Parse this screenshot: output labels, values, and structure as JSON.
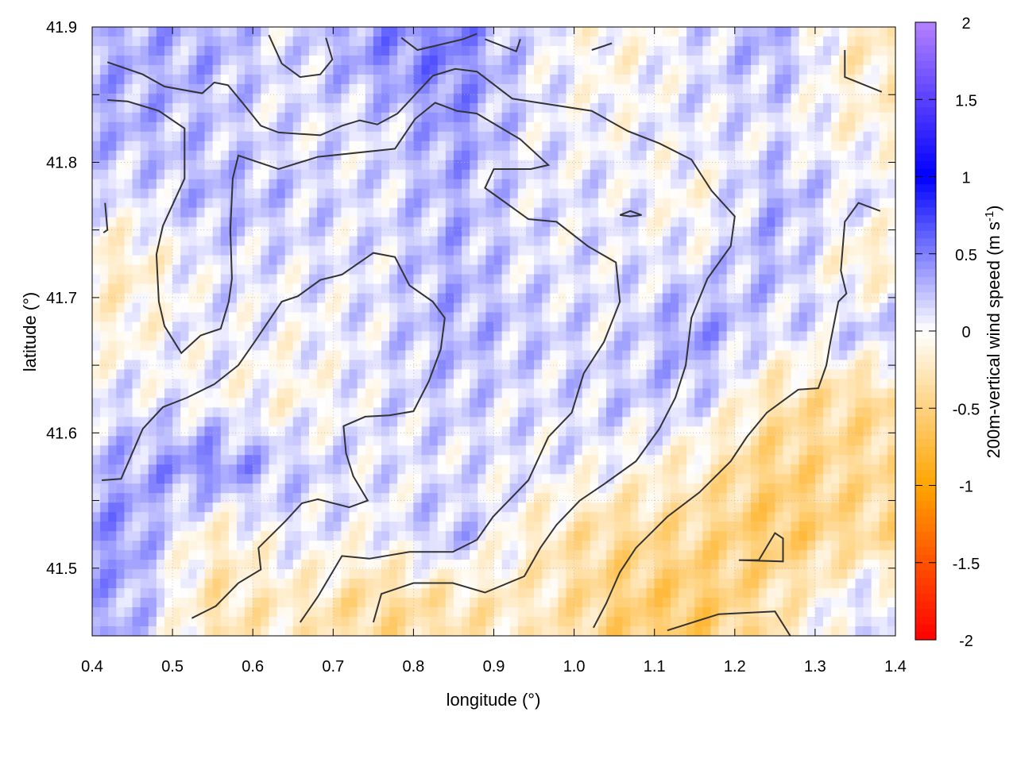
{
  "chart_data": {
    "type": "heatmap",
    "title": "",
    "xlabel": "longitude (°)",
    "ylabel": "latitude (°)",
    "xlim": [
      0.4,
      1.4
    ],
    "ylim": [
      41.45,
      41.9
    ],
    "xticks": [
      "0.4",
      "0.5",
      "0.6",
      "0.7",
      "0.8",
      "0.9",
      "1.0",
      "1.1",
      "1.2",
      "1.3",
      "1.4"
    ],
    "yticks": [
      "41.5",
      "41.6",
      "41.7",
      "41.8",
      "41.9"
    ],
    "grid": true,
    "colorbar": {
      "label": "200m-vertical wind speed (m s",
      "label_sup": "-1",
      "label_end": ")",
      "range": [
        -2,
        2
      ],
      "ticks": [
        "2",
        "1.5",
        "1",
        "0.5",
        "0",
        "-0.5",
        "-1",
        "-1.5",
        "-2"
      ],
      "stops": [
        {
          "value": -2,
          "color": "#ff0000"
        },
        {
          "value": -1,
          "color": "#ffa500"
        },
        {
          "value": 0,
          "color": "#ffffff"
        },
        {
          "value": 1,
          "color": "#0000ff"
        },
        {
          "value": 2,
          "color": "#b482ff"
        }
      ]
    },
    "grid_lon": [
      0.45,
      0.55,
      0.65,
      0.75,
      0.85,
      0.95,
      1.05,
      1.15,
      1.25,
      1.35
    ],
    "grid_lat": [
      41.875,
      41.825,
      41.775,
      41.725,
      41.675,
      41.625,
      41.575,
      41.525,
      41.475
    ],
    "values": [
      [
        0.3,
        0.3,
        0.1,
        0.4,
        0.5,
        0.1,
        -0.1,
        0.1,
        0.3,
        -0.2
      ],
      [
        0.3,
        0.2,
        0.1,
        0.1,
        0.4,
        0.1,
        0.0,
        0.1,
        0.1,
        -0.1
      ],
      [
        0.1,
        0.3,
        0.2,
        0.1,
        0.3,
        0.1,
        0.1,
        -0.1,
        0.3,
        0.1
      ],
      [
        -0.2,
        0.1,
        0.1,
        0.1,
        0.3,
        0.1,
        0.1,
        0.1,
        0.3,
        -0.2
      ],
      [
        -0.1,
        0.1,
        0.0,
        0.1,
        0.3,
        0.2,
        0.1,
        0.4,
        0.1,
        0.2
      ],
      [
        0.1,
        0.0,
        -0.1,
        0.1,
        0.2,
        0.1,
        0.2,
        0.2,
        -0.3,
        -0.4
      ],
      [
        0.3,
        0.5,
        0.2,
        0.1,
        0.1,
        0.1,
        0.0,
        -0.2,
        -0.5,
        -0.4
      ],
      [
        0.4,
        -0.2,
        0.1,
        0.0,
        0.3,
        -0.2,
        -0.4,
        -0.4,
        -0.6,
        -0.4
      ],
      [
        0.3,
        -0.3,
        -0.2,
        -0.4,
        -0.3,
        -0.2,
        -0.5,
        -0.6,
        -0.3,
        0.1
      ]
    ],
    "contour_color": "#333333",
    "contours": [
      [
        [
          0.419,
          41.874
        ],
        [
          0.463,
          41.865
        ],
        [
          0.49,
          41.856
        ],
        [
          0.537,
          41.851
        ],
        [
          0.552,
          41.859
        ],
        [
          0.569,
          41.857
        ],
        [
          0.587,
          41.844
        ],
        [
          0.61,
          41.827
        ],
        [
          0.632,
          41.822
        ],
        [
          0.684,
          41.82
        ],
        [
          0.711,
          41.827
        ],
        [
          0.733,
          41.831
        ],
        [
          0.755,
          41.828
        ],
        [
          0.78,
          41.836
        ],
        [
          0.799,
          41.848
        ],
        [
          0.824,
          41.864
        ],
        [
          0.852,
          41.869
        ],
        [
          0.879,
          41.867
        ],
        [
          0.923,
          41.847
        ],
        [
          0.978,
          41.842
        ],
        [
          1.022,
          41.838
        ],
        [
          1.067,
          41.823
        ],
        [
          1.106,
          41.814
        ],
        [
          1.146,
          41.802
        ],
        [
          1.171,
          41.779
        ],
        [
          1.2,
          41.76
        ],
        [
          1.195,
          41.738
        ],
        [
          1.166,
          41.714
        ],
        [
          1.146,
          41.685
        ],
        [
          1.139,
          41.65
        ],
        [
          1.126,
          41.626
        ],
        [
          1.106,
          41.603
        ],
        [
          1.077,
          41.579
        ],
        [
          1.037,
          41.562
        ],
        [
          1.007,
          41.55
        ],
        [
          0.978,
          41.532
        ],
        [
          0.958,
          41.515
        ],
        [
          0.938,
          41.494
        ],
        [
          0.889,
          41.482
        ],
        [
          0.849,
          41.489
        ],
        [
          0.8,
          41.489
        ],
        [
          0.76,
          41.481
        ],
        [
          0.75,
          41.46
        ]
      ],
      [
        [
          0.419,
          41.846
        ],
        [
          0.444,
          41.845
        ],
        [
          0.483,
          41.838
        ],
        [
          0.515,
          41.825
        ],
        [
          0.515,
          41.788
        ],
        [
          0.488,
          41.753
        ],
        [
          0.48,
          41.732
        ],
        [
          0.483,
          41.697
        ],
        [
          0.49,
          41.679
        ],
        [
          0.511,
          41.659
        ],
        [
          0.535,
          41.672
        ],
        [
          0.56,
          41.677
        ],
        [
          0.57,
          41.697
        ],
        [
          0.574,
          41.714
        ],
        [
          0.572,
          41.75
        ],
        [
          0.575,
          41.788
        ],
        [
          0.582,
          41.805
        ],
        [
          0.632,
          41.795
        ],
        [
          0.681,
          41.804
        ],
        [
          0.777,
          41.81
        ],
        [
          0.802,
          41.832
        ],
        [
          0.827,
          41.844
        ],
        [
          0.854,
          41.838
        ],
        [
          0.879,
          41.836
        ],
        [
          0.933,
          41.817
        ],
        [
          0.968,
          41.798
        ],
        [
          0.946,
          41.795
        ],
        [
          0.9,
          41.795
        ],
        [
          0.889,
          41.781
        ],
        [
          0.908,
          41.773
        ],
        [
          0.943,
          41.758
        ],
        [
          0.978,
          41.756
        ],
        [
          1.017,
          41.738
        ],
        [
          1.052,
          41.726
        ],
        [
          1.057,
          41.697
        ],
        [
          1.037,
          41.667
        ],
        [
          1.012,
          41.644
        ],
        [
          0.997,
          41.615
        ],
        [
          0.968,
          41.597
        ],
        [
          0.943,
          41.565
        ],
        [
          0.899,
          41.538
        ],
        [
          0.879,
          41.521
        ],
        [
          0.849,
          41.512
        ],
        [
          0.795,
          41.512
        ],
        [
          0.745,
          41.507
        ],
        [
          0.711,
          41.509
        ],
        [
          0.681,
          41.479
        ],
        [
          0.659,
          41.46
        ]
      ],
      [
        [
          0.412,
          41.565
        ],
        [
          0.436,
          41.566
        ],
        [
          0.463,
          41.603
        ],
        [
          0.488,
          41.619
        ],
        [
          0.518,
          41.626
        ],
        [
          0.552,
          41.636
        ],
        [
          0.582,
          41.65
        ],
        [
          0.602,
          41.667
        ],
        [
          0.636,
          41.697
        ],
        [
          0.656,
          41.701
        ],
        [
          0.684,
          41.713
        ],
        [
          0.711,
          41.717
        ],
        [
          0.75,
          41.733
        ],
        [
          0.777,
          41.73
        ],
        [
          0.795,
          41.709
        ],
        [
          0.824,
          41.697
        ],
        [
          0.839,
          41.685
        ],
        [
          0.834,
          41.662
        ],
        [
          0.819,
          41.638
        ],
        [
          0.8,
          41.616
        ],
        [
          0.77,
          41.613
        ],
        [
          0.74,
          41.612
        ],
        [
          0.713,
          41.605
        ],
        [
          0.716,
          41.585
        ],
        [
          0.725,
          41.568
        ],
        [
          0.743,
          41.55
        ],
        [
          0.72,
          41.545
        ],
        [
          0.681,
          41.551
        ],
        [
          0.661,
          41.548
        ],
        [
          0.641,
          41.535
        ],
        [
          0.607,
          41.515
        ],
        [
          0.61,
          41.499
        ],
        [
          0.582,
          41.489
        ],
        [
          0.554,
          41.472
        ],
        [
          0.524,
          41.463
        ]
      ],
      [
        [
          1.024,
          41.456
        ],
        [
          1.04,
          41.474
        ],
        [
          1.057,
          41.497
        ],
        [
          1.077,
          41.515
        ],
        [
          1.116,
          41.538
        ],
        [
          1.156,
          41.556
        ],
        [
          1.195,
          41.579
        ],
        [
          1.215,
          41.597
        ],
        [
          1.24,
          41.615
        ],
        [
          1.279,
          41.632
        ],
        [
          1.304,
          41.633
        ],
        [
          1.314,
          41.65
        ],
        [
          1.319,
          41.667
        ],
        [
          1.329,
          41.697
        ],
        [
          1.339,
          41.703
        ],
        [
          1.332,
          41.72
        ],
        [
          1.337,
          41.756
        ],
        [
          1.354,
          41.77
        ],
        [
          1.381,
          41.764
        ]
      ],
      [
        [
          1.116,
          41.454
        ],
        [
          1.18,
          41.466
        ],
        [
          1.25,
          41.468
        ],
        [
          1.269,
          41.45
        ]
      ],
      [
        [
          1.205,
          41.506
        ],
        [
          1.23,
          41.506
        ],
        [
          1.25,
          41.526
        ],
        [
          1.26,
          41.522
        ],
        [
          1.26,
          41.505
        ],
        [
          1.205,
          41.506
        ]
      ],
      [
        [
          1.057,
          41.761
        ],
        [
          1.07,
          41.764
        ],
        [
          1.084,
          41.761
        ],
        [
          1.07,
          41.76
        ],
        [
          1.057,
          41.761
        ]
      ],
      [
        [
          0.62,
          41.894
        ],
        [
          0.636,
          41.873
        ],
        [
          0.659,
          41.863
        ],
        [
          0.684,
          41.865
        ],
        [
          0.699,
          41.876
        ],
        [
          0.691,
          41.892
        ]
      ],
      [
        [
          0.785,
          41.892
        ],
        [
          0.805,
          41.883
        ],
        [
          0.862,
          41.891
        ],
        [
          0.879,
          41.895
        ]
      ],
      [
        [
          0.889,
          41.891
        ],
        [
          0.928,
          41.882
        ],
        [
          0.933,
          41.891
        ]
      ],
      [
        [
          1.022,
          41.883
        ],
        [
          1.047,
          41.888
        ]
      ],
      [
        [
          1.337,
          41.883
        ],
        [
          1.337,
          41.863
        ],
        [
          1.383,
          41.852
        ]
      ],
      [
        [
          0.416,
          41.77
        ],
        [
          0.419,
          41.75
        ],
        [
          0.414,
          41.748
        ]
      ]
    ]
  }
}
